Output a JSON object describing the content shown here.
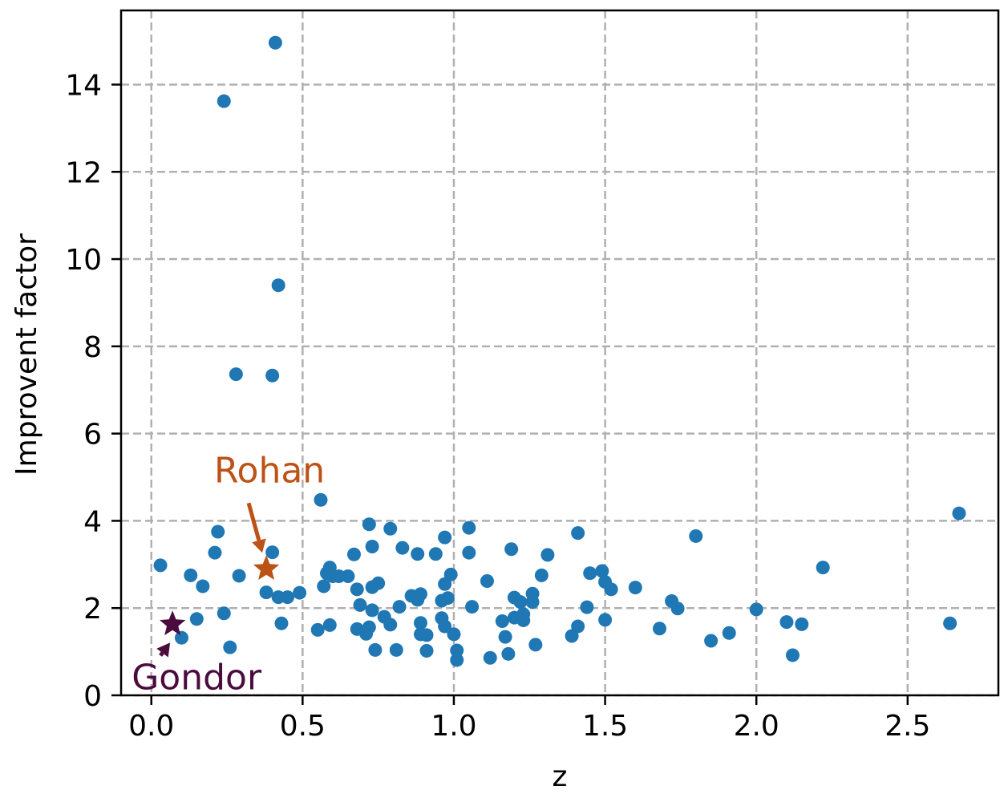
{
  "chart_data": {
    "type": "scatter",
    "xlabel": "z",
    "ylabel": "Improvent factor",
    "xlim": [
      -0.1,
      2.8
    ],
    "ylim": [
      0,
      15.7
    ],
    "xticks": [
      0.0,
      0.5,
      1.0,
      1.5,
      2.0,
      2.5
    ],
    "xtick_labels": [
      "0.0",
      "0.5",
      "1.0",
      "1.5",
      "2.0",
      "2.5"
    ],
    "yticks": [
      0,
      2,
      4,
      6,
      8,
      10,
      12,
      14
    ],
    "ytick_labels": [
      "0",
      "2",
      "4",
      "6",
      "8",
      "10",
      "12",
      "14"
    ],
    "grid": true,
    "point_color": "#1f77b4",
    "points": [
      {
        "x": 0.03,
        "y": 2.98
      },
      {
        "x": 0.1,
        "y": 1.32
      },
      {
        "x": 0.13,
        "y": 2.75
      },
      {
        "x": 0.15,
        "y": 1.75
      },
      {
        "x": 0.17,
        "y": 2.5
      },
      {
        "x": 0.21,
        "y": 3.27
      },
      {
        "x": 0.22,
        "y": 3.75
      },
      {
        "x": 0.24,
        "y": 1.88
      },
      {
        "x": 0.24,
        "y": 13.62
      },
      {
        "x": 0.26,
        "y": 1.1
      },
      {
        "x": 0.28,
        "y": 7.36
      },
      {
        "x": 0.29,
        "y": 2.74
      },
      {
        "x": 0.38,
        "y": 2.36
      },
      {
        "x": 0.4,
        "y": 7.33
      },
      {
        "x": 0.4,
        "y": 3.28
      },
      {
        "x": 0.41,
        "y": 14.96
      },
      {
        "x": 0.42,
        "y": 2.25
      },
      {
        "x": 0.42,
        "y": 9.4
      },
      {
        "x": 0.43,
        "y": 1.65
      },
      {
        "x": 0.45,
        "y": 2.25
      },
      {
        "x": 0.49,
        "y": 2.35
      },
      {
        "x": 0.55,
        "y": 1.5
      },
      {
        "x": 0.56,
        "y": 4.48
      },
      {
        "x": 0.57,
        "y": 2.5
      },
      {
        "x": 0.58,
        "y": 2.8
      },
      {
        "x": 0.59,
        "y": 2.93
      },
      {
        "x": 0.59,
        "y": 1.61
      },
      {
        "x": 0.6,
        "y": 2.73
      },
      {
        "x": 0.62,
        "y": 2.73
      },
      {
        "x": 0.65,
        "y": 2.73
      },
      {
        "x": 0.67,
        "y": 3.23
      },
      {
        "x": 0.68,
        "y": 2.43
      },
      {
        "x": 0.68,
        "y": 1.52
      },
      {
        "x": 0.69,
        "y": 2.07
      },
      {
        "x": 0.71,
        "y": 1.41
      },
      {
        "x": 0.72,
        "y": 3.92
      },
      {
        "x": 0.72,
        "y": 1.56
      },
      {
        "x": 0.73,
        "y": 1.95
      },
      {
        "x": 0.73,
        "y": 3.41
      },
      {
        "x": 0.73,
        "y": 2.48
      },
      {
        "x": 0.75,
        "y": 2.57
      },
      {
        "x": 0.74,
        "y": 1.04
      },
      {
        "x": 0.77,
        "y": 1.8
      },
      {
        "x": 0.79,
        "y": 3.82
      },
      {
        "x": 0.79,
        "y": 1.62
      },
      {
        "x": 0.81,
        "y": 1.04
      },
      {
        "x": 0.82,
        "y": 2.03
      },
      {
        "x": 0.83,
        "y": 3.38
      },
      {
        "x": 0.86,
        "y": 2.28
      },
      {
        "x": 0.88,
        "y": 3.24
      },
      {
        "x": 0.88,
        "y": 2.19
      },
      {
        "x": 0.89,
        "y": 2.32
      },
      {
        "x": 0.89,
        "y": 1.66
      },
      {
        "x": 0.89,
        "y": 1.4
      },
      {
        "x": 0.91,
        "y": 1.38
      },
      {
        "x": 0.91,
        "y": 1.02
      },
      {
        "x": 0.94,
        "y": 3.24
      },
      {
        "x": 0.96,
        "y": 1.77
      },
      {
        "x": 0.96,
        "y": 2.17
      },
      {
        "x": 0.97,
        "y": 2.55
      },
      {
        "x": 0.97,
        "y": 3.62
      },
      {
        "x": 0.97,
        "y": 1.58
      },
      {
        "x": 0.98,
        "y": 2.23
      },
      {
        "x": 0.99,
        "y": 2.77
      },
      {
        "x": 1.0,
        "y": 1.4
      },
      {
        "x": 1.01,
        "y": 1.03
      },
      {
        "x": 1.01,
        "y": 0.81
      },
      {
        "x": 1.05,
        "y": 3.84
      },
      {
        "x": 1.05,
        "y": 3.27
      },
      {
        "x": 1.06,
        "y": 2.03
      },
      {
        "x": 1.11,
        "y": 2.62
      },
      {
        "x": 1.12,
        "y": 0.86
      },
      {
        "x": 1.16,
        "y": 1.7
      },
      {
        "x": 1.17,
        "y": 1.34
      },
      {
        "x": 1.18,
        "y": 0.95
      },
      {
        "x": 1.19,
        "y": 3.35
      },
      {
        "x": 1.2,
        "y": 1.78
      },
      {
        "x": 1.2,
        "y": 2.24
      },
      {
        "x": 1.22,
        "y": 2.14
      },
      {
        "x": 1.23,
        "y": 1.86
      },
      {
        "x": 1.23,
        "y": 1.72
      },
      {
        "x": 1.26,
        "y": 2.33
      },
      {
        "x": 1.26,
        "y": 2.14
      },
      {
        "x": 1.27,
        "y": 1.16
      },
      {
        "x": 1.29,
        "y": 2.75
      },
      {
        "x": 1.31,
        "y": 3.22
      },
      {
        "x": 1.39,
        "y": 1.36
      },
      {
        "x": 1.41,
        "y": 3.72
      },
      {
        "x": 1.41,
        "y": 1.58
      },
      {
        "x": 1.44,
        "y": 2.02
      },
      {
        "x": 1.45,
        "y": 2.8
      },
      {
        "x": 1.49,
        "y": 2.85
      },
      {
        "x": 1.5,
        "y": 2.6
      },
      {
        "x": 1.5,
        "y": 1.73
      },
      {
        "x": 1.52,
        "y": 2.43
      },
      {
        "x": 1.6,
        "y": 2.47
      },
      {
        "x": 1.68,
        "y": 1.53
      },
      {
        "x": 1.72,
        "y": 2.16
      },
      {
        "x": 1.74,
        "y": 1.99
      },
      {
        "x": 1.8,
        "y": 3.65
      },
      {
        "x": 1.85,
        "y": 1.25
      },
      {
        "x": 1.91,
        "y": 1.43
      },
      {
        "x": 2.0,
        "y": 1.97
      },
      {
        "x": 2.1,
        "y": 1.68
      },
      {
        "x": 2.12,
        "y": 0.92
      },
      {
        "x": 2.15,
        "y": 1.63
      },
      {
        "x": 2.22,
        "y": 2.93
      },
      {
        "x": 2.64,
        "y": 1.65
      },
      {
        "x": 2.67,
        "y": 4.17
      }
    ],
    "annotations": [
      {
        "label": "Rohan",
        "x": 0.38,
        "y": 2.9,
        "color": "#bc5215"
      },
      {
        "label": "Gondor",
        "x": 0.07,
        "y": 1.63,
        "color": "#4b0b3d"
      }
    ]
  }
}
